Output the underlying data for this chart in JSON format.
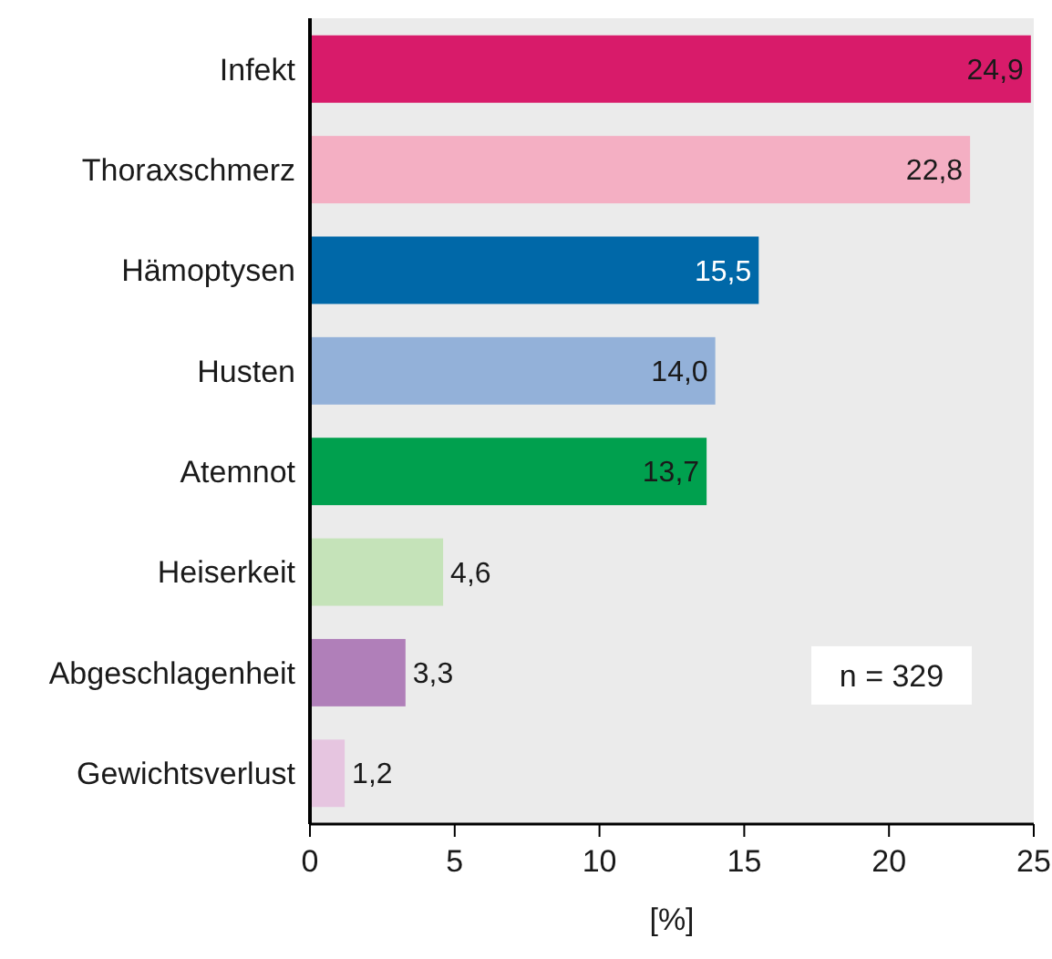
{
  "chart_data": {
    "type": "bar",
    "orientation": "horizontal",
    "xlabel": "[%]",
    "categories": [
      "Infekt",
      "Thoraxschmerz",
      "Hämoptysen",
      "Husten",
      "Atemnot",
      "Heiserkeit",
      "Abgeschlagenheit",
      "Gewichtsverlust"
    ],
    "values": [
      24.9,
      22.8,
      15.5,
      14.0,
      13.7,
      4.6,
      3.3,
      1.2
    ],
    "value_labels": [
      "24,9",
      "22,8",
      "15,5",
      "14,0",
      "13,7",
      "4,6",
      "3,3",
      "1,2"
    ],
    "colors": [
      "#d81b6a",
      "#f4afc3",
      "#0068a8",
      "#93b1d9",
      "#00a04e",
      "#c5e3b9",
      "#b07fb9",
      "#e6c5e0"
    ],
    "xlim": [
      0,
      25
    ],
    "xticks": [
      0,
      5,
      10,
      15,
      20,
      25
    ],
    "grid": false,
    "annotations": [
      "n = 329"
    ]
  }
}
